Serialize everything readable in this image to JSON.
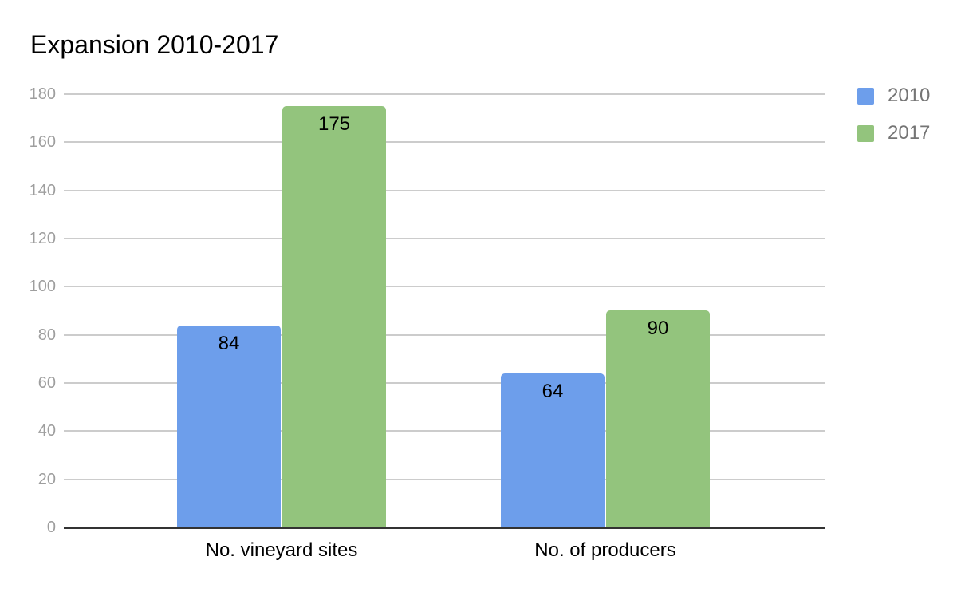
{
  "chart_data": {
    "type": "bar",
    "title": "Expansion 2010-2017",
    "categories": [
      "No. vineyard sites",
      "No. of producers"
    ],
    "series": [
      {
        "name": "2010",
        "color": "#6d9eeb",
        "values": [
          84,
          64
        ]
      },
      {
        "name": "2017",
        "color": "#93c47d",
        "values": [
          175,
          90
        ]
      }
    ],
    "ylim": [
      0,
      180
    ],
    "yticks": [
      0,
      20,
      40,
      60,
      80,
      100,
      120,
      140,
      160,
      180
    ],
    "grid": true,
    "value_labels": true,
    "legend_position": "right",
    "colors": {
      "gridline": "#cccccc",
      "baseline": "#333333",
      "tick_text": "#9e9e9e",
      "legend_text": "#757575",
      "title_text": "#000000",
      "value_text": "#000000",
      "background": "#ffffff"
    }
  }
}
